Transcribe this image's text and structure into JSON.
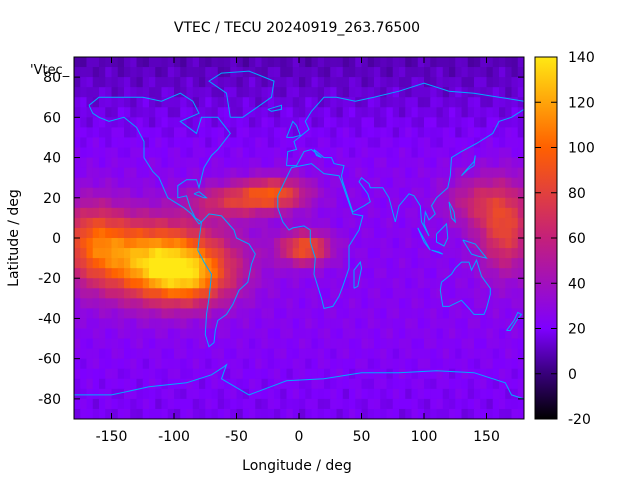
{
  "chart_data": {
    "type": "heatmap",
    "title": "VTEC / TECU 20240919_263.76500",
    "xlabel": "Longitude / deg",
    "ylabel": "Latitude / deg",
    "series_label": "'Vtec_",
    "xlim": [
      -180,
      180
    ],
    "ylim": [
      -90,
      90
    ],
    "x_ticks": [
      -150,
      -100,
      -50,
      0,
      50,
      100,
      150
    ],
    "y_ticks": [
      -80,
      -60,
      -40,
      -20,
      0,
      20,
      40,
      60,
      80
    ],
    "colorbar": {
      "range": [
        -20,
        140
      ],
      "ticks": [
        -20,
        0,
        20,
        40,
        60,
        80,
        100,
        120,
        140
      ],
      "palette": [
        "#000000",
        "#3a007f",
        "#7e00ff",
        "#c4207a",
        "#ff6000",
        "#ffe814"
      ]
    },
    "grid": false,
    "overlay": "coastlines",
    "overlay_color": "#00aaff",
    "field_description": "global vertical total electron content map",
    "enhancements": [
      {
        "name": "equatorial crest Americas/Pacific",
        "lon_center": -120,
        "lat_center": -10,
        "peak": 125
      },
      {
        "name": "West Africa / Atlantic",
        "lon_center": -20,
        "lat_center": 22,
        "peak": 85
      },
      {
        "name": "South Atlantic",
        "lon_center": 5,
        "lat_center": -5,
        "peak": 90
      },
      {
        "name": "Western Pacific",
        "lon_center": 160,
        "lat_center": 5,
        "peak": 80
      }
    ]
  }
}
